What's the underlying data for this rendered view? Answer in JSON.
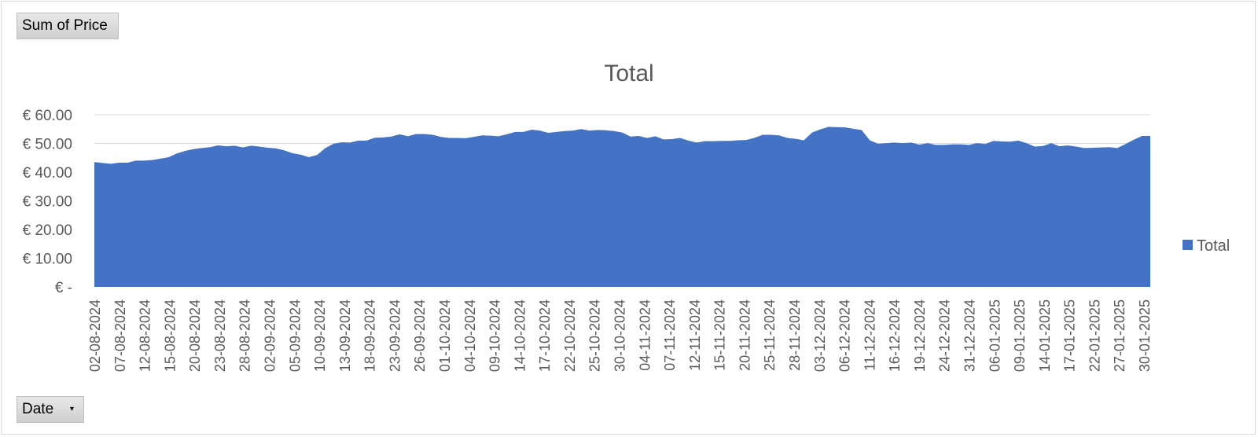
{
  "pivot": {
    "value_field": "Sum of Price",
    "axis_field": "Date"
  },
  "colors": {
    "series": "#4472C4",
    "gridline": "#D9D9D9",
    "text": "#595959"
  },
  "chart_data": {
    "type": "area",
    "title": "Total",
    "xlabel": "",
    "ylabel": "",
    "ylim": [
      0,
      60
    ],
    "y_ticks": [
      {
        "value": 0,
        "label": "€ -"
      },
      {
        "value": 10,
        "label": "€ 10.00"
      },
      {
        "value": 20,
        "label": "€ 20.00"
      },
      {
        "value": 30,
        "label": "€ 30.00"
      },
      {
        "value": 40,
        "label": "€ 40.00"
      },
      {
        "value": 50,
        "label": "€ 50.00"
      },
      {
        "value": 60,
        "label": "€ 60.00"
      }
    ],
    "grid": true,
    "legend": {
      "position": "right",
      "entries": [
        "Total"
      ]
    },
    "x_tick_labels": [
      "02-08-2024",
      "07-08-2024",
      "12-08-2024",
      "15-08-2024",
      "20-08-2024",
      "23-08-2024",
      "28-08-2024",
      "02-09-2024",
      "05-09-2024",
      "10-09-2024",
      "13-09-2024",
      "18-09-2024",
      "23-09-2024",
      "26-09-2024",
      "01-10-2024",
      "04-10-2024",
      "09-10-2024",
      "14-10-2024",
      "17-10-2024",
      "22-10-2024",
      "25-10-2024",
      "30-10-2024",
      "04-11-2024",
      "07-11-2024",
      "12-11-2024",
      "15-11-2024",
      "20-11-2024",
      "25-11-2024",
      "28-11-2024",
      "03-12-2024",
      "06-12-2024",
      "11-12-2024",
      "16-12-2024",
      "19-12-2024",
      "24-12-2024",
      "31-12-2024",
      "06-01-2025",
      "09-01-2025",
      "14-01-2025",
      "17-01-2025",
      "22-01-2025",
      "27-01-2025",
      "30-01-2025"
    ],
    "series": [
      {
        "name": "Total",
        "values": [
          43.5,
          43.2,
          42.9,
          43.3,
          43.3,
          44.0,
          44.0,
          44.2,
          44.7,
          45.2,
          46.5,
          47.4,
          48.0,
          48.4,
          48.7,
          49.3,
          49.0,
          49.2,
          48.6,
          49.2,
          48.9,
          48.5,
          48.3,
          47.6,
          46.6,
          46.1,
          45.2,
          46.0,
          48.4,
          49.9,
          50.4,
          50.3,
          51.0,
          51.0,
          52.0,
          52.1,
          52.4,
          53.2,
          52.5,
          53.3,
          53.3,
          53.0,
          52.3,
          51.9,
          51.9,
          51.8,
          52.3,
          52.8,
          52.7,
          52.5,
          53.2,
          54.0,
          54.0,
          54.8,
          54.5,
          53.7,
          54.0,
          54.3,
          54.5,
          55.0,
          54.5,
          54.7,
          54.6,
          54.3,
          53.8,
          52.4,
          52.6,
          51.9,
          52.5,
          51.4,
          51.5,
          51.9,
          51.0,
          50.3,
          50.8,
          50.8,
          50.9,
          50.9,
          51.1,
          51.2,
          51.9,
          53.0,
          53.0,
          52.8,
          51.9,
          51.6,
          51.1,
          53.8,
          54.9,
          55.8,
          55.7,
          55.6,
          55.1,
          54.7,
          51.1,
          49.9,
          50.1,
          50.3,
          50.1,
          50.3,
          49.6,
          50.1,
          49.5,
          49.5,
          49.7,
          49.7,
          49.5,
          50.1,
          49.8,
          50.9,
          50.7,
          50.6,
          51.0,
          50.1,
          48.9,
          49.1,
          50.1,
          49.0,
          49.3,
          48.9,
          48.4,
          48.5,
          48.6,
          48.7,
          48.4,
          49.8,
          51.3,
          52.6,
          52.6
        ]
      }
    ]
  }
}
